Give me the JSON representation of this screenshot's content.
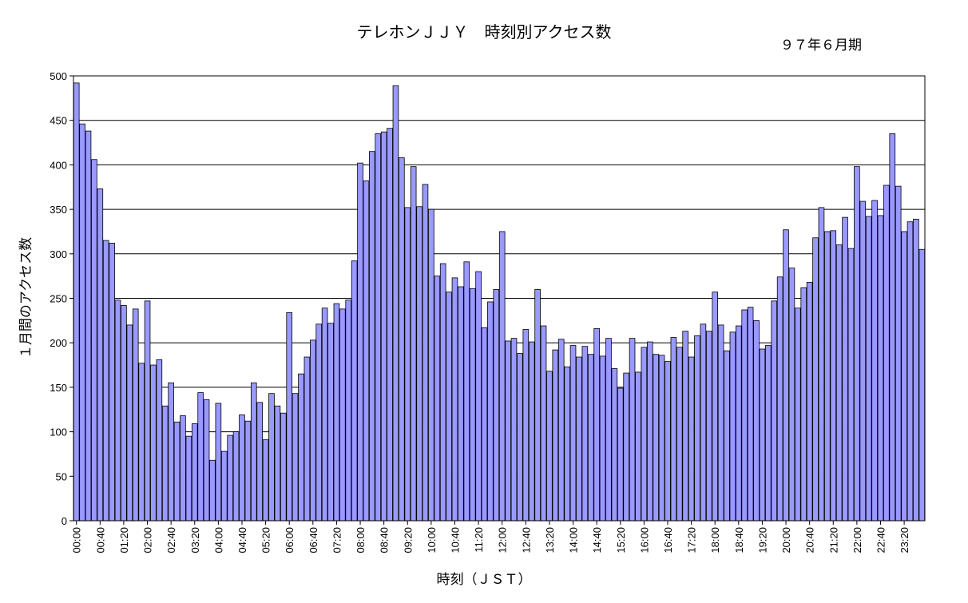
{
  "chart_data": {
    "type": "bar",
    "title": "テレホンＪＪＹ　時刻別アクセス数",
    "subtitle": "９７年６月期",
    "xlabel": "時刻（ＪＳＴ）",
    "ylabel": "１月間のアクセス数",
    "ylim": [
      0,
      500
    ],
    "yticks": [
      0,
      50,
      100,
      150,
      200,
      250,
      300,
      350,
      400,
      450,
      500
    ],
    "grid": true,
    "bar_color": "#9999ff",
    "x_interval_minutes": 10,
    "xtick_labels": [
      "00:00",
      "00:40",
      "01:20",
      "02:00",
      "02:40",
      "03:20",
      "04:00",
      "04:40",
      "05:20",
      "06:00",
      "06:40",
      "07:20",
      "08:00",
      "08:40",
      "09:20",
      "10:00",
      "10:40",
      "11:20",
      "12:00",
      "12:40",
      "13:20",
      "14:00",
      "14:40",
      "15:20",
      "16:00",
      "16:40",
      "17:20",
      "18:00",
      "18:40",
      "19:20",
      "20:00",
      "20:40",
      "21:20",
      "22:00",
      "22:40",
      "23:20"
    ],
    "values": [
      492,
      446,
      438,
      406,
      373,
      315,
      312,
      248,
      242,
      220,
      238,
      177,
      247,
      175,
      181,
      129,
      155,
      111,
      118,
      95,
      109,
      144,
      136,
      68,
      132,
      78,
      96,
      100,
      119,
      112,
      155,
      133,
      91,
      143,
      129,
      121,
      234,
      143,
      165,
      184,
      203,
      221,
      239,
      222,
      244,
      238,
      248,
      292,
      402,
      382,
      415,
      435,
      437,
      441,
      489,
      408,
      352,
      398,
      353,
      378,
      350,
      275,
      289,
      257,
      273,
      263,
      291,
      261,
      280,
      217,
      246,
      260,
      325,
      202,
      205,
      188,
      215,
      201,
      260,
      219,
      168,
      192,
      204,
      173,
      197,
      184,
      196,
      187,
      216,
      185,
      205,
      171,
      149,
      166,
      205,
      167,
      195,
      201,
      187,
      186,
      179,
      206,
      195,
      213,
      184,
      208,
      221,
      213,
      257,
      220,
      191,
      212,
      219,
      237,
      240,
      225,
      193,
      197,
      247,
      274,
      327,
      284,
      239,
      262,
      268,
      318,
      352,
      325,
      326,
      310,
      341,
      306,
      398,
      359,
      342,
      360,
      343,
      377,
      435,
      376,
      325,
      336,
      339,
      305
    ]
  }
}
